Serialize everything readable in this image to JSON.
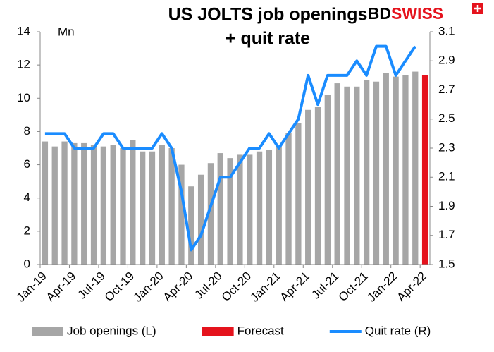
{
  "chart_data": {
    "type": "bar-line",
    "title": [
      "US JOLTS job openings",
      "+ quit rate"
    ],
    "logo": [
      "BD",
      "SWISS"
    ],
    "annotation": "Mn",
    "categories": [
      "Jan-19",
      null,
      null,
      "Apr-19",
      null,
      null,
      "Jul-19",
      null,
      null,
      "Oct-19",
      null,
      null,
      "Jan-20",
      null,
      null,
      "Apr-20",
      null,
      null,
      "Jul-20",
      null,
      null,
      "Oct-20",
      null,
      null,
      "Jan-21",
      null,
      null,
      "Apr-21",
      null,
      null,
      "Jul-21",
      null,
      null,
      "Oct-21",
      null,
      null,
      "Jan-22",
      null,
      null,
      "Apr-22"
    ],
    "series": [
      {
        "name": "Job openings (L)",
        "type": "bar",
        "color": "#a6a6a6",
        "values": [
          7.4,
          7.1,
          7.4,
          7.3,
          7.3,
          7.2,
          7.1,
          7.2,
          7.0,
          7.5,
          6.8,
          6.8,
          7.2,
          7.0,
          6.0,
          4.7,
          5.4,
          6.1,
          6.7,
          6.4,
          6.6,
          6.6,
          6.8,
          6.9,
          7.1,
          7.9,
          8.5,
          9.3,
          9.5,
          10.2,
          10.9,
          10.7,
          10.7,
          11.1,
          11.0,
          11.5,
          11.3,
          11.4,
          11.6,
          null
        ]
      },
      {
        "name": "Forecast",
        "type": "bar",
        "color": "#e5131d",
        "values": [
          null,
          null,
          null,
          null,
          null,
          null,
          null,
          null,
          null,
          null,
          null,
          null,
          null,
          null,
          null,
          null,
          null,
          null,
          null,
          null,
          null,
          null,
          null,
          null,
          null,
          null,
          null,
          null,
          null,
          null,
          null,
          null,
          null,
          null,
          null,
          null,
          null,
          null,
          null,
          11.4
        ]
      },
      {
        "name": "Quit rate (R)",
        "type": "line",
        "axis": "y2",
        "color": "#1a8cff",
        "values": [
          2.4,
          2.4,
          2.4,
          2.3,
          2.3,
          2.3,
          2.4,
          2.4,
          2.3,
          2.3,
          2.3,
          2.3,
          2.4,
          2.3,
          2.0,
          1.6,
          1.7,
          1.9,
          2.1,
          2.1,
          2.2,
          2.3,
          2.3,
          2.4,
          2.3,
          2.4,
          2.5,
          2.8,
          2.6,
          2.8,
          2.8,
          2.8,
          2.9,
          2.8,
          3.0,
          3.0,
          2.8,
          2.9,
          3.0,
          null
        ]
      }
    ],
    "ylim": [
      0,
      14
    ],
    "yticks": [
      0,
      2,
      4,
      6,
      8,
      10,
      12,
      14
    ],
    "y2lim": [
      1.5,
      3.1
    ],
    "y2ticks": [
      1.5,
      1.7,
      1.9,
      2.1,
      2.3,
      2.5,
      2.7,
      2.9,
      3.1
    ],
    "grid": false
  }
}
